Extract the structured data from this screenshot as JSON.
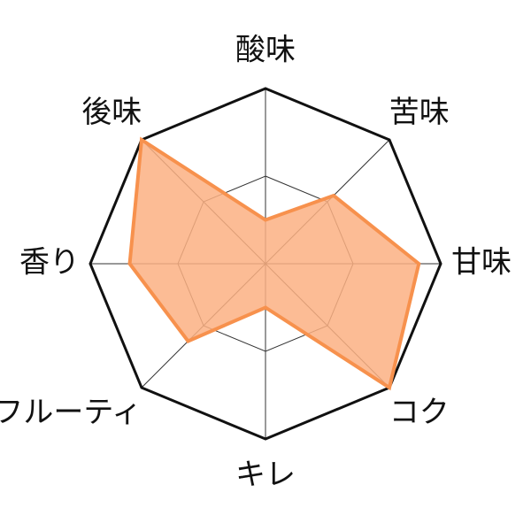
{
  "chart_data": {
    "type": "radar",
    "categories": [
      "酸味",
      "苦味",
      "甘味",
      "コク",
      "キレ",
      "フルーティ",
      "香り",
      "後味"
    ],
    "values": [
      1,
      2.2,
      3.5,
      4,
      1,
      2.5,
      3.1,
      4
    ],
    "color": "#f7914d",
    "fill": "#fbb083",
    "rlim": [
      0,
      4
    ],
    "rticks": [
      2,
      4
    ],
    "grid": true
  }
}
